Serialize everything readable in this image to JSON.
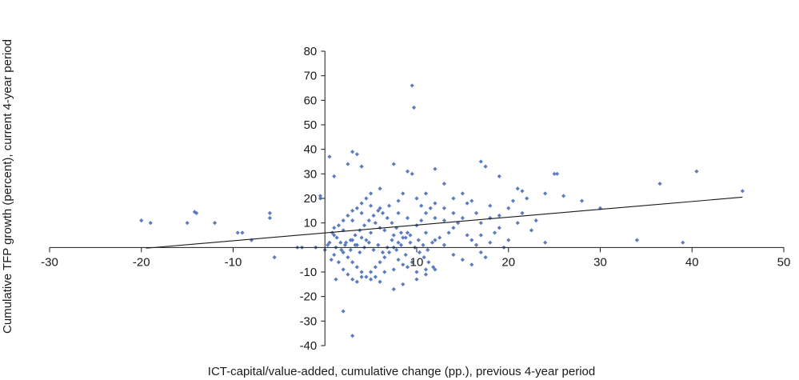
{
  "chart_data": {
    "type": "scatter",
    "xlabel": "ICT-capital/value-added, cumulative change (pp.), previous 4-year period",
    "ylabel": "Cumulative TFP growth (percent), current 4-year period",
    "xlim": [
      -30,
      50
    ],
    "ylim": [
      -40,
      80
    ],
    "x_ticks": [
      -30,
      -20,
      -10,
      10,
      20,
      30,
      40,
      50
    ],
    "y_ticks": [
      -40,
      -30,
      -20,
      -10,
      10,
      20,
      30,
      40,
      50,
      60,
      70,
      80
    ],
    "grid": false,
    "legend": "none",
    "marker_color": "#5b7dbf",
    "line_color": "#1a1a1a",
    "trendline": {
      "x": [
        -19.5,
        45.5
      ],
      "y": [
        -0.3,
        20.5
      ]
    },
    "series": [
      {
        "points": [
          [
            -20,
            11
          ],
          [
            -19,
            10
          ],
          [
            -15,
            10
          ],
          [
            -14.2,
            14.5
          ],
          [
            -14,
            14
          ],
          [
            -12,
            10
          ],
          [
            -9.5,
            6
          ],
          [
            -9,
            6
          ],
          [
            -8,
            3
          ],
          [
            -6,
            12
          ],
          [
            -6,
            14
          ],
          [
            -5.5,
            -4
          ],
          [
            -3,
            0
          ],
          [
            -2.5,
            0
          ],
          [
            -1,
            0
          ],
          [
            -0.5,
            20
          ],
          [
            -0.5,
            21
          ],
          [
            0.5,
            37
          ],
          [
            1,
            29
          ],
          [
            1.2,
            -13
          ],
          [
            2,
            -26
          ],
          [
            2.5,
            34
          ],
          [
            3,
            39
          ],
          [
            3.5,
            38
          ],
          [
            3,
            -36
          ],
          [
            4,
            33
          ],
          [
            7.5,
            34
          ],
          [
            9,
            31
          ],
          [
            9.5,
            30
          ],
          [
            9.5,
            66
          ],
          [
            9.7,
            57
          ],
          [
            12,
            32
          ],
          [
            13,
            26
          ],
          [
            17,
            35
          ],
          [
            17.5,
            33
          ],
          [
            19,
            29
          ],
          [
            25,
            30
          ],
          [
            25.3,
            30
          ],
          [
            26,
            21
          ],
          [
            28,
            19
          ],
          [
            30,
            16
          ],
          [
            24,
            22
          ],
          [
            36.5,
            26
          ],
          [
            40.5,
            31
          ],
          [
            45.5,
            23
          ],
          [
            34,
            3
          ],
          [
            39,
            2
          ],
          [
            24,
            2
          ],
          [
            21,
            24
          ],
          [
            21.5,
            23
          ],
          [
            22,
            20
          ],
          [
            20,
            16
          ],
          [
            23,
            11
          ],
          [
            19,
            13
          ],
          [
            18,
            12
          ],
          [
            16,
            19
          ],
          [
            15,
            22
          ],
          [
            14,
            20
          ],
          [
            13,
            16
          ],
          [
            12,
            18
          ],
          [
            11,
            14
          ],
          [
            11,
            22
          ],
          [
            10.5,
            17
          ],
          [
            10,
            20
          ],
          [
            8.5,
            22
          ],
          [
            8,
            19
          ],
          [
            7,
            17
          ],
          [
            6,
            24
          ],
          [
            5,
            22
          ],
          [
            4.5,
            20
          ],
          [
            4,
            18
          ],
          [
            3.5,
            16
          ],
          [
            3,
            15
          ],
          [
            2.5,
            13
          ],
          [
            2,
            11
          ],
          [
            1.5,
            9
          ],
          [
            1,
            8
          ],
          [
            0.8,
            6
          ],
          [
            1.3,
            4
          ],
          [
            1.7,
            2
          ],
          [
            2.2,
            1
          ],
          [
            2.8,
            3
          ],
          [
            3.3,
            5
          ],
          [
            3.8,
            7
          ],
          [
            4.3,
            9
          ],
          [
            4.8,
            11
          ],
          [
            5.3,
            13
          ],
          [
            5.8,
            15
          ],
          [
            6.3,
            14
          ],
          [
            6.8,
            12
          ],
          [
            7.3,
            10
          ],
          [
            7.8,
            8
          ],
          [
            8.3,
            6
          ],
          [
            8.8,
            4
          ],
          [
            9.3,
            2
          ],
          [
            9.8,
            0
          ],
          [
            10.3,
            -2
          ],
          [
            10.8,
            -4
          ],
          [
            11.3,
            -6
          ],
          [
            11.8,
            -8
          ],
          [
            2,
            -2
          ],
          [
            2.5,
            -4
          ],
          [
            3,
            -6
          ],
          [
            3.5,
            -8
          ],
          [
            4,
            -10
          ],
          [
            4.5,
            -12
          ],
          [
            5,
            -10
          ],
          [
            5.5,
            -8
          ],
          [
            6,
            -6
          ],
          [
            6.5,
            -4
          ],
          [
            7,
            -2
          ],
          [
            7.5,
            0
          ],
          [
            8,
            2
          ],
          [
            8.5,
            4
          ],
          [
            9,
            6
          ],
          [
            1,
            -3
          ],
          [
            1.5,
            -6
          ],
          [
            2,
            -9
          ],
          [
            2.5,
            -11
          ],
          [
            3,
            -13
          ],
          [
            3.5,
            -14
          ],
          [
            4,
            -12
          ],
          [
            5.5,
            -12
          ],
          [
            6.5,
            -10
          ],
          [
            7.5,
            -9
          ],
          [
            8.5,
            -7
          ],
          [
            9.5,
            -6
          ],
          [
            7.5,
            -17
          ],
          [
            8.5,
            -15
          ],
          [
            10,
            -13
          ],
          [
            11,
            -11
          ],
          [
            12,
            -9
          ],
          [
            12.5,
            4
          ],
          [
            13.5,
            6
          ],
          [
            14,
            8
          ],
          [
            14.5,
            10
          ],
          [
            15,
            12
          ],
          [
            15.5,
            5
          ],
          [
            16,
            3
          ],
          [
            16.5,
            1
          ],
          [
            17,
            -2
          ],
          [
            17.5,
            -4
          ],
          [
            18,
            2
          ],
          [
            18.5,
            6
          ],
          [
            19,
            8
          ],
          [
            19.5,
            0
          ],
          [
            20,
            3
          ],
          [
            21,
            10
          ],
          [
            21.5,
            14
          ],
          [
            22.5,
            7
          ],
          [
            14,
            -3
          ],
          [
            15,
            -5
          ],
          [
            16,
            -7
          ],
          [
            17,
            5
          ],
          [
            13,
            1
          ],
          [
            12,
            3
          ],
          [
            11,
            6
          ],
          [
            10,
            9
          ],
          [
            9,
            12
          ],
          [
            8,
            14
          ],
          [
            6,
            16
          ],
          [
            5,
            17
          ],
          [
            4,
            14
          ],
          [
            3,
            11
          ],
          [
            2,
            7
          ],
          [
            1,
            5
          ],
          [
            0.5,
            2
          ],
          [
            0,
            -1
          ],
          [
            0.3,
            1
          ],
          [
            0.7,
            -5
          ],
          [
            1.2,
            0
          ],
          [
            1.8,
            -1
          ],
          [
            2.3,
            2
          ],
          [
            2.8,
            -1
          ],
          [
            3.3,
            1
          ],
          [
            3.8,
            -2
          ],
          [
            4.3,
            0
          ],
          [
            4.8,
            2
          ],
          [
            5.3,
            -1
          ],
          [
            5.8,
            1
          ],
          [
            6.3,
            -2
          ],
          [
            6.8,
            0
          ],
          [
            7.3,
            3
          ],
          [
            7.8,
            -1
          ],
          [
            8.3,
            1
          ],
          [
            8.8,
            -3
          ],
          [
            9.3,
            5
          ],
          [
            10.2,
            3
          ],
          [
            10.7,
            1
          ],
          [
            11.2,
            -1
          ],
          [
            11.7,
            2
          ],
          [
            6,
            8
          ],
          [
            5,
            6
          ],
          [
            4,
            4
          ],
          [
            3,
            3
          ],
          [
            5.5,
            10
          ],
          [
            6.5,
            7
          ],
          [
            7.5,
            5
          ],
          [
            4.5,
            3
          ],
          [
            3.5,
            1
          ],
          [
            8,
            -5
          ],
          [
            9,
            -8
          ],
          [
            10,
            -10
          ],
          [
            11,
            -9
          ],
          [
            6,
            -14
          ],
          [
            5,
            -13
          ],
          [
            15.5,
            18
          ],
          [
            16.5,
            14
          ],
          [
            18,
            17
          ],
          [
            20.5,
            19
          ],
          [
            17,
            10
          ],
          [
            14,
            14
          ],
          [
            13,
            11
          ],
          [
            12,
            12
          ],
          [
            11.5,
            16
          ],
          [
            10.5,
            11
          ]
        ]
      }
    ]
  }
}
